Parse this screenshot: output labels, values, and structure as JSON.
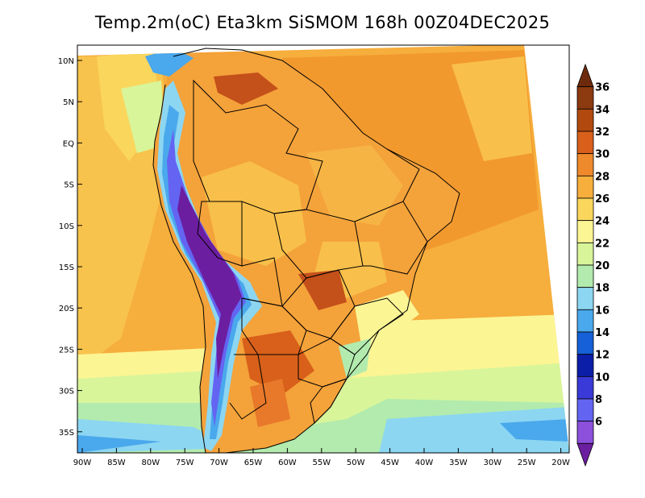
{
  "title": "Temp.2m(oC) Eta3km SiSMOM 168h 00Z04DEC2025",
  "map": {
    "lat_ticks": [
      "10N",
      "5N",
      "EQ",
      "5S",
      "10S",
      "15S",
      "20S",
      "25S",
      "30S",
      "35S"
    ],
    "lon_ticks": [
      "90W",
      "85W",
      "80W",
      "75W",
      "70W",
      "65W",
      "60W",
      "55W",
      "50W",
      "45W",
      "40W",
      "35W",
      "30W",
      "25W",
      "20W"
    ]
  },
  "colorbar": {
    "labels": [
      "36",
      "34",
      "32",
      "30",
      "28",
      "26",
      "24",
      "22",
      "20",
      "18",
      "16",
      "14",
      "12",
      "10",
      "8",
      "6"
    ],
    "colors": [
      "#6e2a0c",
      "#8c3a10",
      "#b24a10",
      "#d8601a",
      "#ef8a2c",
      "#f6ae3c",
      "#fad65c",
      "#fcf594",
      "#d8f59a",
      "#b2ebad",
      "#8cd6f2",
      "#4aa8ec",
      "#1660d8",
      "#0a1ea8",
      "#3a3ad8",
      "#6464f2",
      "#8c50dc",
      "#6c1ea0"
    ]
  }
}
